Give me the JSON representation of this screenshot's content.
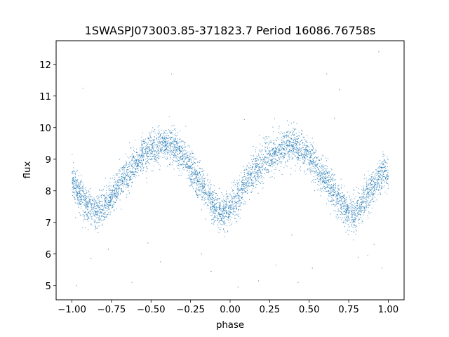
{
  "chart_data": {
    "type": "scatter",
    "title": "1SWASPJ073003.85-371823.7 Period 16086.76758s",
    "xlabel": "phase",
    "ylabel": "flux",
    "xlim": [
      -1.1,
      1.1
    ],
    "ylim": [
      4.55,
      12.75
    ],
    "x_ticks": [
      -1.0,
      -0.75,
      -0.5,
      -0.25,
      0.0,
      0.25,
      0.5,
      0.75,
      1.0
    ],
    "x_tick_labels": [
      "−1.00",
      "−0.75",
      "−0.50",
      "−0.25",
      "0.00",
      "0.25",
      "0.50",
      "0.75",
      "1.00"
    ],
    "y_ticks": [
      5,
      6,
      7,
      8,
      9,
      10,
      11,
      12
    ],
    "y_tick_labels": [
      "5",
      "6",
      "7",
      "8",
      "9",
      "10",
      "11",
      "12"
    ],
    "grid": false,
    "marker_color": "#1f77b4",
    "series": [
      {
        "x": [
          -1.0,
          -0.975,
          -0.95,
          -0.925,
          -0.9,
          -0.875,
          -0.85,
          -0.825,
          -0.8,
          -0.775,
          -0.75,
          -0.725,
          -0.7,
          -0.675,
          -0.65,
          -0.625,
          -0.6,
          -0.575,
          -0.55,
          -0.525,
          -0.5,
          -0.475,
          -0.45,
          -0.425,
          -0.4,
          -0.375,
          -0.35,
          -0.325,
          -0.3,
          -0.275,
          -0.25,
          -0.225,
          -0.2,
          -0.175,
          -0.15,
          -0.125,
          -0.1,
          -0.075,
          -0.05,
          -0.025,
          0.0,
          0.025,
          0.05,
          0.075,
          0.1,
          0.125,
          0.15,
          0.175,
          0.2,
          0.225,
          0.25,
          0.275,
          0.3,
          0.325,
          0.35,
          0.375,
          0.4,
          0.425,
          0.45,
          0.475,
          0.5,
          0.525,
          0.55,
          0.575,
          0.6,
          0.625,
          0.65,
          0.675,
          0.7,
          0.725,
          0.75,
          0.775,
          0.8,
          0.825,
          0.85,
          0.875,
          0.9,
          0.925,
          0.95,
          0.975,
          1.0
        ],
        "y": [
          8.4,
          8.1,
          7.9,
          7.7,
          7.5,
          7.4,
          7.3,
          7.4,
          7.5,
          7.6,
          7.8,
          8.0,
          8.2,
          8.4,
          8.55,
          8.7,
          8.85,
          9.0,
          9.1,
          9.2,
          9.3,
          9.35,
          9.4,
          9.45,
          9.45,
          9.4,
          9.35,
          9.25,
          9.1,
          8.9,
          8.7,
          8.5,
          8.3,
          8.1,
          7.9,
          7.7,
          7.5,
          7.35,
          7.3,
          7.35,
          7.5,
          7.6,
          7.8,
          8.0,
          8.2,
          8.4,
          8.55,
          8.7,
          8.85,
          9.0,
          9.1,
          9.2,
          9.3,
          9.35,
          9.4,
          9.45,
          9.45,
          9.4,
          9.3,
          9.2,
          9.05,
          8.9,
          8.7,
          8.5,
          8.4,
          8.2,
          8.0,
          7.8,
          7.6,
          7.45,
          7.35,
          7.3,
          7.35,
          7.5,
          7.7,
          7.9,
          8.1,
          8.3,
          8.5,
          8.65,
          8.4
        ]
      }
    ],
    "outliers": {
      "x": [
        -0.93,
        -0.88,
        -0.62,
        -0.44,
        -0.37,
        -0.28,
        -0.12,
        0.05,
        0.18,
        0.29,
        0.43,
        0.52,
        0.61,
        0.69,
        0.81,
        0.87,
        0.94,
        0.96,
        -0.97,
        -0.77,
        -0.52,
        -0.18,
        0.09,
        0.39,
        0.66,
        0.91
      ],
      "y": [
        11.25,
        5.85,
        5.1,
        5.75,
        11.7,
        10.05,
        5.45,
        4.95,
        5.15,
        5.65,
        5.1,
        5.55,
        11.7,
        11.2,
        5.9,
        5.95,
        12.4,
        5.55,
        5.0,
        6.15,
        6.35,
        6.0,
        10.25,
        6.6,
        10.3,
        6.3
      ]
    }
  }
}
